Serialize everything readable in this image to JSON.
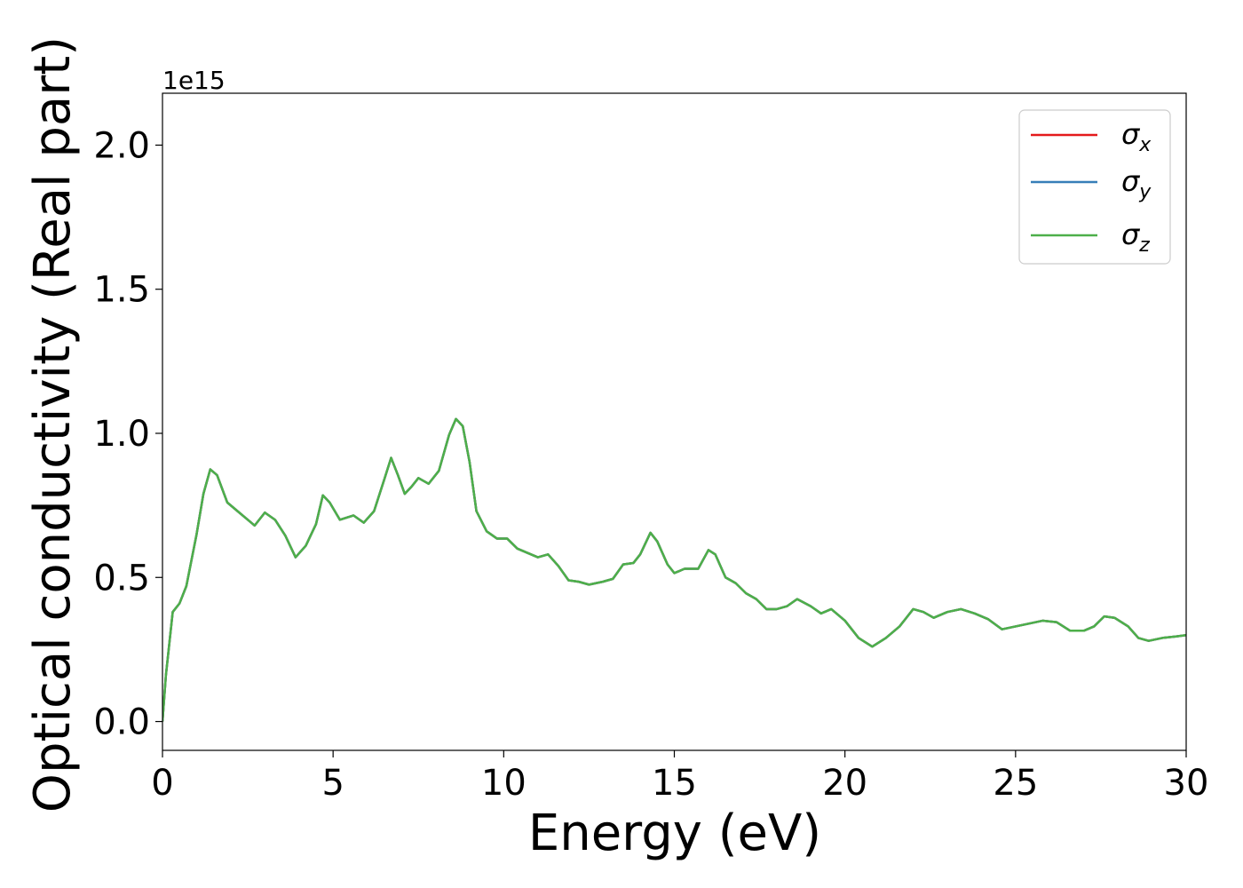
{
  "chart_data": {
    "type": "line",
    "xlabel": "Energy (eV)",
    "ylabel": "Optical conductivity (Real part)",
    "offset_text": "1e15",
    "x": [
      0,
      0.1,
      0.3,
      0.5,
      0.7,
      1.0,
      1.2,
      1.4,
      1.6,
      1.9,
      2.2,
      2.5,
      2.7,
      3.0,
      3.3,
      3.6,
      3.9,
      4.2,
      4.5,
      4.7,
      4.9,
      5.2,
      5.6,
      5.9,
      6.2,
      6.5,
      6.7,
      6.9,
      7.1,
      7.3,
      7.5,
      7.8,
      8.1,
      8.4,
      8.6,
      8.8,
      9.0,
      9.2,
      9.5,
      9.8,
      10.1,
      10.4,
      10.8,
      11.0,
      11.3,
      11.6,
      11.9,
      12.2,
      12.5,
      12.9,
      13.2,
      13.5,
      13.8,
      14.0,
      14.3,
      14.5,
      14.8,
      15.0,
      15.3,
      15.7,
      16.0,
      16.2,
      16.5,
      16.8,
      17.1,
      17.4,
      17.7,
      18.0,
      18.3,
      18.6,
      19.0,
      19.3,
      19.6,
      20.0,
      20.4,
      20.8,
      21.2,
      21.6,
      22.0,
      22.3,
      22.6,
      23.0,
      23.4,
      23.8,
      24.2,
      24.6,
      25.0,
      25.4,
      25.8,
      26.2,
      26.6,
      27.0,
      27.3,
      27.6,
      27.9,
      28.3,
      28.6,
      28.9,
      29.3,
      29.7,
      30.0
    ],
    "series": [
      {
        "name": "σx",
        "color": "#e41a1c",
        "values": [
          0.0,
          0.16,
          0.38,
          0.41,
          0.47,
          0.65,
          0.79,
          0.875,
          0.855,
          0.76,
          0.73,
          0.7,
          0.68,
          0.725,
          0.7,
          0.645,
          0.57,
          0.61,
          0.685,
          0.785,
          0.76,
          0.7,
          0.715,
          0.69,
          0.73,
          0.84,
          0.915,
          0.855,
          0.79,
          0.815,
          0.845,
          0.825,
          0.87,
          0.995,
          1.05,
          1.025,
          0.9,
          0.73,
          0.66,
          0.635,
          0.635,
          0.6,
          0.58,
          0.57,
          0.58,
          0.54,
          0.49,
          0.485,
          0.475,
          0.485,
          0.495,
          0.545,
          0.55,
          0.58,
          0.655,
          0.625,
          0.545,
          0.515,
          0.53,
          0.53,
          0.595,
          0.58,
          0.5,
          0.48,
          0.445,
          0.425,
          0.39,
          0.39,
          0.4,
          0.425,
          0.4,
          0.375,
          0.39,
          0.35,
          0.29,
          0.26,
          0.29,
          0.33,
          0.39,
          0.38,
          0.36,
          0.38,
          0.39,
          0.375,
          0.355,
          0.32,
          0.33,
          0.34,
          0.35,
          0.345,
          0.315,
          0.315,
          0.33,
          0.365,
          0.36,
          0.33,
          0.29,
          0.28,
          0.29,
          0.295,
          0.3
        ]
      },
      {
        "name": "σy",
        "color": "#377eb8",
        "values": [
          0.0,
          0.16,
          0.38,
          0.41,
          0.47,
          0.65,
          0.79,
          0.875,
          0.855,
          0.76,
          0.73,
          0.7,
          0.68,
          0.725,
          0.7,
          0.645,
          0.57,
          0.61,
          0.685,
          0.785,
          0.76,
          0.7,
          0.715,
          0.69,
          0.73,
          0.84,
          0.915,
          0.855,
          0.79,
          0.815,
          0.845,
          0.825,
          0.87,
          0.995,
          1.05,
          1.025,
          0.9,
          0.73,
          0.66,
          0.635,
          0.635,
          0.6,
          0.58,
          0.57,
          0.58,
          0.54,
          0.49,
          0.485,
          0.475,
          0.485,
          0.495,
          0.545,
          0.55,
          0.58,
          0.655,
          0.625,
          0.545,
          0.515,
          0.53,
          0.53,
          0.595,
          0.58,
          0.5,
          0.48,
          0.445,
          0.425,
          0.39,
          0.39,
          0.4,
          0.425,
          0.4,
          0.375,
          0.39,
          0.35,
          0.29,
          0.26,
          0.29,
          0.33,
          0.39,
          0.38,
          0.36,
          0.38,
          0.39,
          0.375,
          0.355,
          0.32,
          0.33,
          0.34,
          0.35,
          0.345,
          0.315,
          0.315,
          0.33,
          0.365,
          0.36,
          0.33,
          0.29,
          0.28,
          0.29,
          0.295,
          0.3
        ]
      },
      {
        "name": "σz",
        "color": "#4daf4a",
        "values": [
          0.0,
          0.16,
          0.38,
          0.41,
          0.47,
          0.65,
          0.79,
          0.875,
          0.855,
          0.76,
          0.73,
          0.7,
          0.68,
          0.725,
          0.7,
          0.645,
          0.57,
          0.61,
          0.685,
          0.785,
          0.76,
          0.7,
          0.715,
          0.69,
          0.73,
          0.84,
          0.915,
          0.855,
          0.79,
          0.815,
          0.845,
          0.825,
          0.87,
          0.995,
          1.05,
          1.025,
          0.9,
          0.73,
          0.66,
          0.635,
          0.635,
          0.6,
          0.58,
          0.57,
          0.58,
          0.54,
          0.49,
          0.485,
          0.475,
          0.485,
          0.495,
          0.545,
          0.55,
          0.58,
          0.655,
          0.625,
          0.545,
          0.515,
          0.53,
          0.53,
          0.595,
          0.58,
          0.5,
          0.48,
          0.445,
          0.425,
          0.39,
          0.39,
          0.4,
          0.425,
          0.4,
          0.375,
          0.39,
          0.35,
          0.29,
          0.26,
          0.29,
          0.33,
          0.39,
          0.38,
          0.36,
          0.38,
          0.39,
          0.375,
          0.355,
          0.32,
          0.33,
          0.34,
          0.35,
          0.345,
          0.315,
          0.315,
          0.33,
          0.365,
          0.36,
          0.33,
          0.29,
          0.28,
          0.29,
          0.295,
          0.3
        ]
      }
    ],
    "xlim": [
      0,
      30
    ],
    "xticks": [
      0,
      5,
      10,
      15,
      20,
      25,
      30
    ],
    "ylim": [
      -0.1,
      2.18
    ],
    "yticks": [
      {
        "value": 0,
        "label": "0.0"
      },
      0.5,
      {
        "value": 1,
        "label": "1.0"
      },
      1.5,
      {
        "value": 2,
        "label": "2.0"
      }
    ],
    "grid": false,
    "legend": "upper right"
  }
}
